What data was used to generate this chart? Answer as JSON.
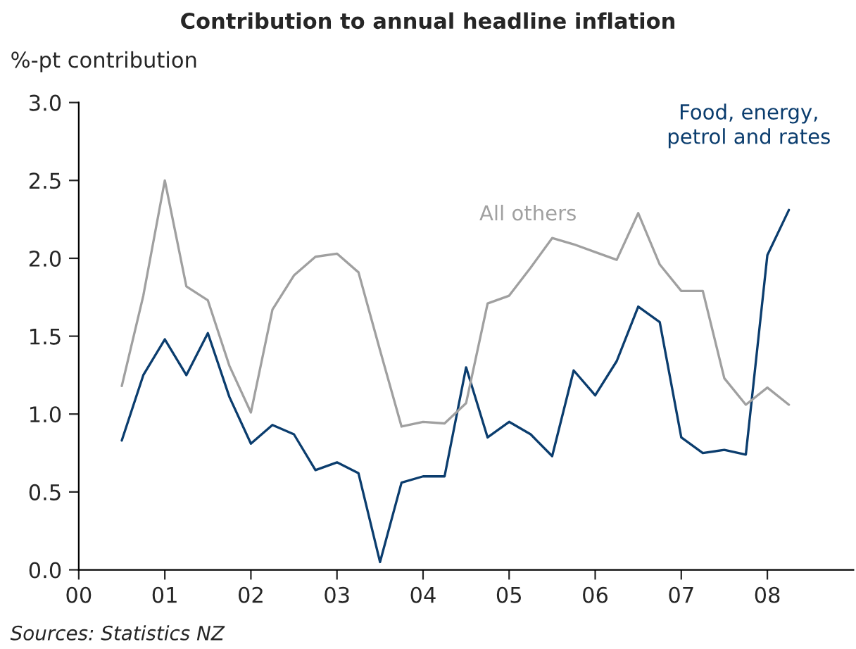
{
  "chart_data": {
    "type": "line",
    "title": "Contribution to annual headline inflation",
    "ylabel": "%-pt contribution",
    "x": [
      2000.5,
      2000.75,
      2001,
      2001.25,
      2001.5,
      2001.75,
      2002,
      2002.25,
      2002.5,
      2002.75,
      2003,
      2003.25,
      2003.5,
      2003.75,
      2004,
      2004.25,
      2004.5,
      2004.75,
      2005,
      2005.25,
      2005.5,
      2005.75,
      2006,
      2006.25,
      2006.5,
      2006.75,
      2007,
      2007.25,
      2007.5,
      2007.75,
      2008,
      2008.25
    ],
    "series": [
      {
        "name": "Food, energy, petrol and rates",
        "color": "#0b3d6e",
        "values": [
          0.83,
          1.25,
          1.48,
          1.25,
          1.52,
          1.11,
          0.81,
          0.93,
          0.87,
          0.64,
          0.69,
          0.62,
          0.05,
          0.56,
          0.6,
          0.6,
          1.3,
          0.85,
          0.95,
          0.87,
          0.73,
          1.28,
          1.12,
          1.34,
          1.69,
          1.59,
          0.85,
          0.75,
          0.77,
          0.74,
          2.02,
          2.31
        ]
      },
      {
        "name": "All others",
        "color": "#a0a0a0",
        "values": [
          1.18,
          1.76,
          2.5,
          1.82,
          1.73,
          1.31,
          1.01,
          1.67,
          1.89,
          2.01,
          2.03,
          1.91,
          1.41,
          0.92,
          0.95,
          0.94,
          1.07,
          1.71,
          1.76,
          1.94,
          2.13,
          2.09,
          2.04,
          1.99,
          2.29,
          1.96,
          1.79,
          1.79,
          1.23,
          1.06,
          1.17,
          1.06
        ]
      }
    ],
    "xlim": [
      2000,
      2009
    ],
    "xticks": [
      {
        "value": 2000,
        "label": "00"
      },
      {
        "value": 2001,
        "label": "01"
      },
      {
        "value": 2002,
        "label": "02"
      },
      {
        "value": 2003,
        "label": "03"
      },
      {
        "value": 2004,
        "label": "04"
      },
      {
        "value": 2005,
        "label": "05"
      },
      {
        "value": 2006,
        "label": "06"
      },
      {
        "value": 2007,
        "label": "07"
      },
      {
        "value": 2008,
        "label": "08"
      }
    ],
    "ylim": [
      0,
      3
    ],
    "yticks": [
      {
        "value": 0,
        "label": "0.0"
      },
      {
        "value": 0.5,
        "label": "0.5"
      },
      {
        "value": 1,
        "label": "1.0"
      },
      {
        "value": 1.5,
        "label": "1.5"
      },
      {
        "value": 2,
        "label": "2.0"
      },
      {
        "value": 2.5,
        "label": "2.5"
      },
      {
        "value": 3,
        "label": "3.0"
      }
    ],
    "grid": false,
    "legend": false,
    "line_style": "solid",
    "marker": "none",
    "annotations": [
      "Sources: Statistics NZ"
    ]
  }
}
